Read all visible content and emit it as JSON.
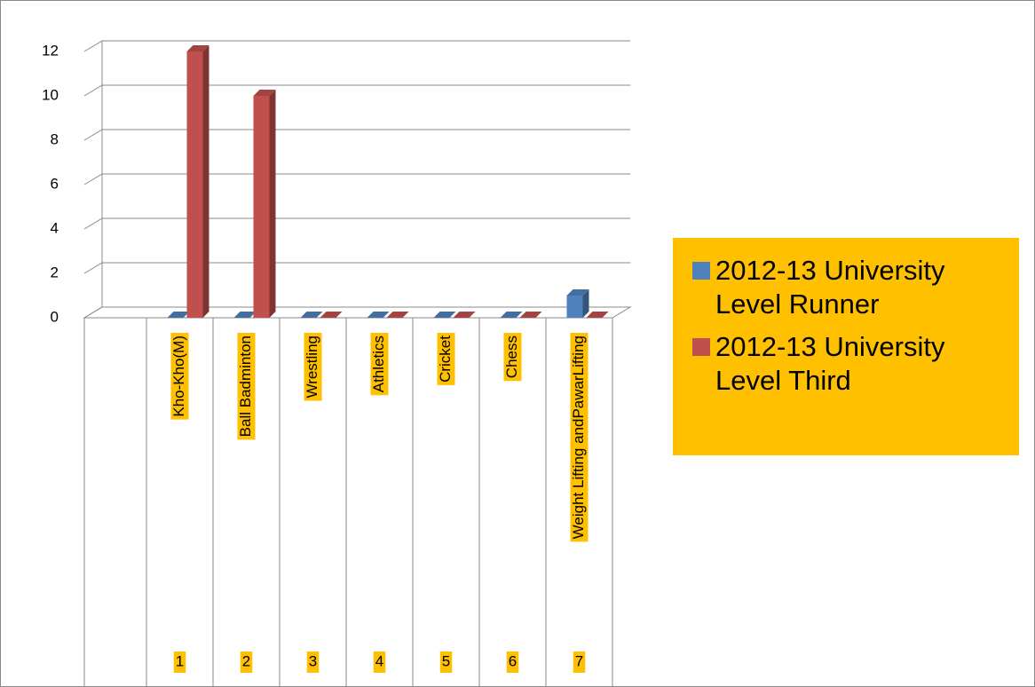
{
  "chart_data": {
    "type": "bar3d",
    "categories": [
      "Kho-Kho(M)",
      "Ball Badminton",
      "Wrestling",
      "Athletics",
      "Cricket",
      "Chess",
      "Weight Lifting andPawarLifting"
    ],
    "subcategories": [
      "1",
      "2",
      "3",
      "4",
      "5",
      "6",
      "7"
    ],
    "series": [
      {
        "name": "2012-13 University Level Runner",
        "color": "#4f81bd",
        "values": [
          0,
          0,
          0,
          0,
          0,
          0,
          1
        ]
      },
      {
        "name": "2012-13 University Level Third",
        "color": "#c0504d",
        "values": [
          12,
          10,
          0,
          0,
          0,
          0,
          0
        ]
      }
    ],
    "ylim": [
      0,
      12
    ],
    "yticks": [
      0,
      2,
      4,
      6,
      8,
      10,
      12
    ],
    "grid": true,
    "legend": "right",
    "label_background": "#ffc000"
  }
}
